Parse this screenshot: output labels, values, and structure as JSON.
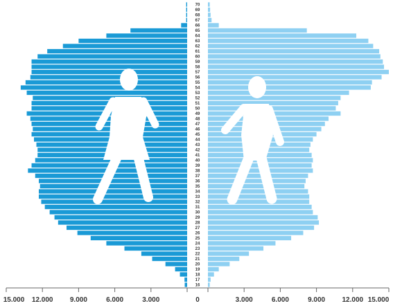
{
  "chart_data": {
    "type": "bar",
    "orientation": "horizontal-population-pyramid",
    "title": "",
    "xlabel": "",
    "ylabel": "",
    "xlim": [
      0,
      15000
    ],
    "x_ticks": [
      15000,
      12000,
      9000,
      6000,
      3000,
      0,
      3000,
      6000,
      9000,
      12000,
      15000
    ],
    "x_tick_labels": [
      "15.000",
      "12.000",
      "9.000",
      "6.000",
      "3.000",
      "0",
      "3.000",
      "6.000",
      "9.000",
      "12.000",
      "15.000"
    ],
    "categories": [
      "16",
      "17",
      "18",
      "19",
      "20",
      "21",
      "22",
      "23",
      "24",
      "25",
      "26",
      "27",
      "28",
      "29",
      "30",
      "31",
      "32",
      "33",
      "34",
      "35",
      "36",
      "37",
      "38",
      "39",
      "40",
      "41",
      "42",
      "43",
      "44",
      "45",
      "46",
      "47",
      "48",
      "49",
      "50",
      "51",
      "52",
      "53",
      "54",
      "55",
      "56",
      "57",
      "58",
      "59",
      "60",
      "61",
      "62",
      "63",
      "64",
      "65",
      "66",
      "67",
      "68",
      "69",
      "70"
    ],
    "series": [
      {
        "side": "left",
        "icon": "female-walking-icon",
        "color": "#1a9ad6",
        "values": [
          200,
          220,
          600,
          1000,
          1800,
          2900,
          3800,
          5200,
          6700,
          8000,
          9100,
          10000,
          10700,
          11000,
          11400,
          11800,
          12100,
          12300,
          12300,
          12200,
          12300,
          12600,
          13200,
          12900,
          12600,
          12400,
          12400,
          12500,
          12700,
          12900,
          12800,
          12900,
          13000,
          13300,
          12900,
          12900,
          12800,
          13300,
          13800,
          13400,
          13000,
          12900,
          12900,
          12900,
          12400,
          11600,
          10300,
          9000,
          6700,
          4700,
          500,
          80,
          80,
          80,
          80
        ]
      },
      {
        "side": "right",
        "icon": "male-walking-icon",
        "color": "#8ed0f2",
        "values": [
          150,
          220,
          500,
          900,
          1800,
          2600,
          3400,
          4600,
          5600,
          6900,
          7900,
          8800,
          9200,
          9100,
          8700,
          8600,
          8400,
          8400,
          8300,
          8000,
          8100,
          8300,
          8700,
          8600,
          8700,
          8600,
          8400,
          8500,
          8700,
          9000,
          9400,
          9700,
          10000,
          11000,
          10600,
          10800,
          11000,
          11700,
          13500,
          13600,
          14400,
          15000,
          14600,
          14500,
          14300,
          14200,
          13700,
          13300,
          12300,
          8200,
          900,
          300,
          220,
          180,
          150
        ]
      }
    ],
    "legend": "none",
    "grid": false
  }
}
